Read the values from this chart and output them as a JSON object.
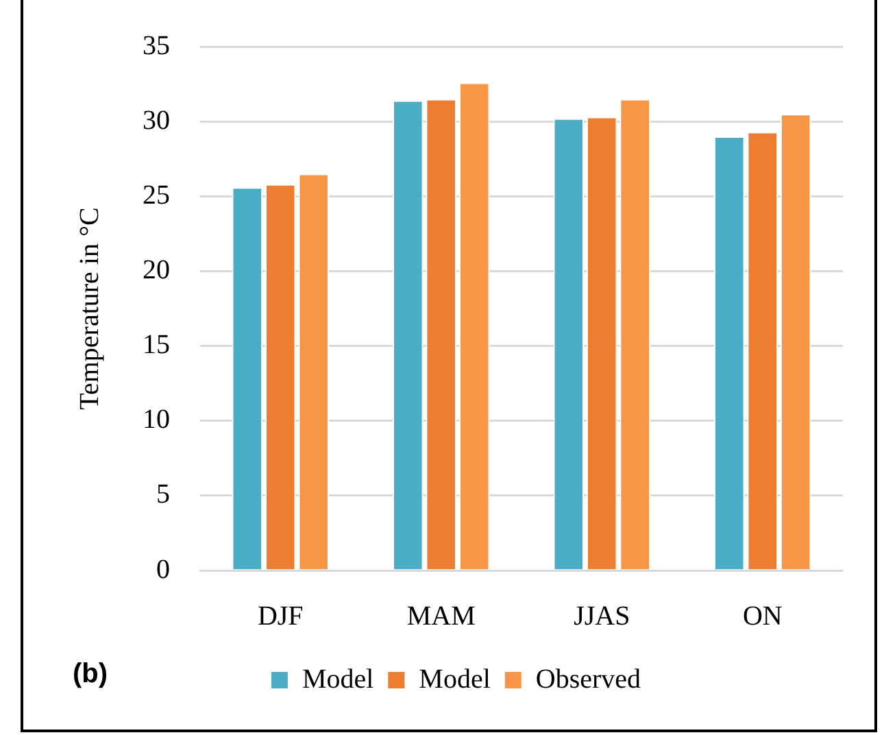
{
  "chart_data": {
    "type": "bar",
    "categories": [
      "DJF",
      "MAM",
      "JJAS",
      "ON"
    ],
    "series": [
      {
        "name": "Model",
        "color": "#4bacc6",
        "values": [
          25.6,
          31.4,
          30.2,
          29.0
        ]
      },
      {
        "name": "Model",
        "color": "#ed7d31",
        "values": [
          25.8,
          31.5,
          30.3,
          29.3
        ]
      },
      {
        "name": "Observed",
        "color": "#f79646",
        "values": [
          26.5,
          32.6,
          31.5,
          30.5
        ]
      }
    ],
    "ylabel": "Temperature in °C",
    "ylim": [
      0,
      35
    ],
    "yticks": [
      0,
      5,
      10,
      15,
      20,
      25,
      30,
      35
    ],
    "grid": "y",
    "legend": "bottom",
    "annotations": [
      "(b)"
    ]
  }
}
